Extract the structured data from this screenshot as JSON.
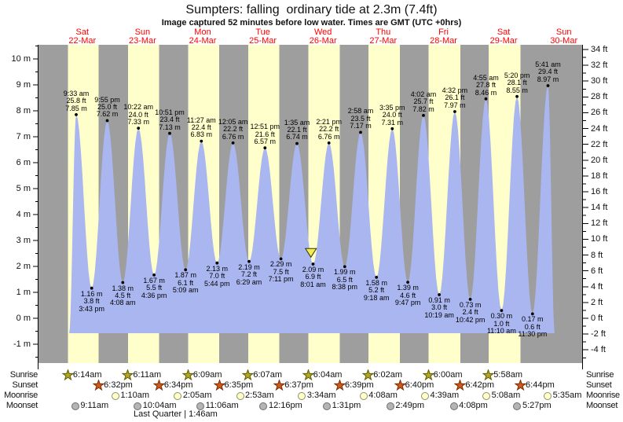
{
  "title": "Sumpters: falling  ordinary tide at 2.3m (7.4ft)",
  "subtitle": "Image captured 52 minutes before low water. Times are GMT (UTC +0hrs)",
  "days": [
    {
      "name": "Sat",
      "date": "22-Mar"
    },
    {
      "name": "Sun",
      "date": "23-Mar"
    },
    {
      "name": "Mon",
      "date": "24-Mar"
    },
    {
      "name": "Tue",
      "date": "25-Mar"
    },
    {
      "name": "Wed",
      "date": "26-Mar"
    },
    {
      "name": "Thu",
      "date": "27-Mar"
    },
    {
      "name": "Fri",
      "date": "28-Mar"
    },
    {
      "name": "Sat",
      "date": "29-Mar"
    },
    {
      "name": "Sun",
      "date": "30-Mar"
    }
  ],
  "axes": {
    "left": {
      "unit": "m",
      "ticks": [
        10,
        9,
        8,
        7,
        6,
        5,
        4,
        3,
        2,
        1,
        0,
        -1
      ]
    },
    "right": {
      "unit": "ft",
      "ticks": [
        34,
        32,
        30,
        28,
        26,
        24,
        22,
        20,
        18,
        16,
        14,
        12,
        10,
        8,
        6,
        4,
        2,
        0,
        -2,
        -4
      ]
    }
  },
  "chart_data": {
    "type": "area",
    "title": "Sumpters: falling  ordinary tide at 2.3m (7.4ft)",
    "x_axis": "9 days, Sat 22-Mar through Sun 30-Mar, day bands = daylight (yellow) / night (grey)",
    "ylabel_left": "height (m)",
    "ylabel_right": "height (ft)",
    "ylim_left_m": [
      -1.7,
      10.5
    ],
    "tide_events": [
      {
        "kind": "high",
        "day": 0,
        "time": "9:33 am",
        "ft": "25.8",
        "m": "7.85"
      },
      {
        "kind": "low",
        "day": 0,
        "time": "3:43 pm",
        "ft": "3.8",
        "m": "1.16"
      },
      {
        "kind": "high",
        "day": 0,
        "time": "9:55 pm",
        "ft": "25.0",
        "m": "7.62"
      },
      {
        "kind": "low",
        "day": 1,
        "time": "4:08 am",
        "ft": "4.5",
        "m": "1.38"
      },
      {
        "kind": "high",
        "day": 1,
        "time": "10:22 am",
        "ft": "24.0",
        "m": "7.33"
      },
      {
        "kind": "low",
        "day": 1,
        "time": "4:36 pm",
        "ft": "5.5",
        "m": "1.67"
      },
      {
        "kind": "high",
        "day": 1,
        "time": "10:51 pm",
        "ft": "23.4",
        "m": "7.13"
      },
      {
        "kind": "low",
        "day": 2,
        "time": "5:09 am",
        "ft": "6.1",
        "m": "1.87"
      },
      {
        "kind": "high",
        "day": 2,
        "time": "11:27 am",
        "ft": "22.4",
        "m": "6.83"
      },
      {
        "kind": "low",
        "day": 2,
        "time": "5:44 pm",
        "ft": "7.0",
        "m": "2.13"
      },
      {
        "kind": "high",
        "day": 3,
        "time": "12:05 am",
        "ft": "22.2",
        "m": "6.76"
      },
      {
        "kind": "low",
        "day": 3,
        "time": "6:29 am",
        "ft": "7.2",
        "m": "2.19"
      },
      {
        "kind": "high",
        "day": 3,
        "time": "12:51 pm",
        "ft": "21.6",
        "m": "6.57"
      },
      {
        "kind": "low",
        "day": 3,
        "time": "7:11 pm",
        "ft": "7.5",
        "m": "2.29"
      },
      {
        "kind": "high",
        "day": 4,
        "time": "1:35 am",
        "ft": "22.1",
        "m": "6.74"
      },
      {
        "kind": "low",
        "day": 4,
        "time": "8:01 am",
        "ft": "6.9",
        "m": "2.09"
      },
      {
        "kind": "high",
        "day": 4,
        "time": "2:21 pm",
        "ft": "22.2",
        "m": "6.76"
      },
      {
        "kind": "low",
        "day": 4,
        "time": "8:38 pm",
        "ft": "6.5",
        "m": "1.99"
      },
      {
        "kind": "high",
        "day": 5,
        "time": "2:58 am",
        "ft": "23.5",
        "m": "7.17"
      },
      {
        "kind": "low",
        "day": 5,
        "time": "9:18 am",
        "ft": "5.2",
        "m": "1.58"
      },
      {
        "kind": "high",
        "day": 5,
        "time": "3:35 pm",
        "ft": "24.0",
        "m": "7.31"
      },
      {
        "kind": "low",
        "day": 5,
        "time": "9:47 pm",
        "ft": "4.6",
        "m": "1.39"
      },
      {
        "kind": "high",
        "day": 6,
        "time": "4:02 am",
        "ft": "25.7",
        "m": "7.82"
      },
      {
        "kind": "low",
        "day": 6,
        "time": "10:19 am",
        "ft": "3.0",
        "m": "0.91"
      },
      {
        "kind": "high",
        "day": 6,
        "time": "4:32 pm",
        "ft": "26.1",
        "m": "7.97"
      },
      {
        "kind": "low",
        "day": 6,
        "time": "10:42 pm",
        "ft": "2.4",
        "m": "0.73"
      },
      {
        "kind": "high",
        "day": 7,
        "time": "4:55 am",
        "ft": "27.8",
        "m": "8.46"
      },
      {
        "kind": "low",
        "day": 7,
        "time": "11:10 am",
        "ft": "1.0",
        "m": "0.30"
      },
      {
        "kind": "high",
        "day": 7,
        "time": "5:20 pm",
        "ft": "28.1",
        "m": "8.55"
      },
      {
        "kind": "low",
        "day": 7,
        "time": "11:30 pm",
        "ft": "0.6",
        "m": "0.17"
      },
      {
        "kind": "high",
        "day": 8,
        "time": "5:41 am",
        "ft": "29.4",
        "m": "8.97"
      }
    ],
    "now_marker": {
      "day": 4,
      "time": "7:09 am"
    }
  },
  "astro": {
    "rows": [
      {
        "label": "Sunrise",
        "icon": "sunrise-star-icon",
        "events": [
          {
            "day": 0,
            "time": "6:14am"
          },
          {
            "day": 1,
            "time": "6:11am"
          },
          {
            "day": 2,
            "time": "6:09am"
          },
          {
            "day": 3,
            "time": "6:07am"
          },
          {
            "day": 4,
            "time": "6:04am"
          },
          {
            "day": 5,
            "time": "6:02am"
          },
          {
            "day": 6,
            "time": "6:00am"
          },
          {
            "day": 7,
            "time": "5:58am"
          }
        ]
      },
      {
        "label": "Sunset",
        "icon": "sunset-star-icon",
        "events": [
          {
            "day": 0,
            "time": "6:32pm"
          },
          {
            "day": 1,
            "time": "6:34pm"
          },
          {
            "day": 2,
            "time": "6:35pm"
          },
          {
            "day": 3,
            "time": "6:37pm"
          },
          {
            "day": 4,
            "time": "6:39pm"
          },
          {
            "day": 5,
            "time": "6:40pm"
          },
          {
            "day": 6,
            "time": "6:42pm"
          },
          {
            "day": 7,
            "time": "6:44pm"
          }
        ]
      },
      {
        "label": "Moonrise",
        "icon": "moonrise-circle-icon",
        "events": [
          {
            "day": 1,
            "time": "1:10am"
          },
          {
            "day": 2,
            "time": "2:05am"
          },
          {
            "day": 3,
            "time": "2:53am"
          },
          {
            "day": 4,
            "time": "3:34am"
          },
          {
            "day": 5,
            "time": "4:08am"
          },
          {
            "day": 6,
            "time": "4:39am"
          },
          {
            "day": 7,
            "time": "5:08am"
          },
          {
            "day": 8,
            "time": "5:35am"
          }
        ]
      },
      {
        "label": "Moonset",
        "icon": "moonset-circle-icon",
        "events": [
          {
            "day": 0,
            "time": "9:11am"
          },
          {
            "day": 1,
            "time": "10:04am"
          },
          {
            "day": 2,
            "time": "11:06am"
          },
          {
            "day": 3,
            "time": "12:16pm"
          },
          {
            "day": 4,
            "time": "1:31pm"
          },
          {
            "day": 5,
            "time": "2:49pm"
          },
          {
            "day": 6,
            "time": "4:08pm"
          },
          {
            "day": 7,
            "time": "5:27pm"
          }
        ]
      }
    ],
    "moon_phase": "Last Quarter | 1:46am"
  },
  "colors": {
    "night_band": "#9e9e9e",
    "day_band": "#ffffcc",
    "tide_fill": "#aab6f0",
    "date_text": "#ff0000",
    "axis": "#000000",
    "sunrise_star": "#b3a824",
    "sunrise_star_edge": "#5f5a00",
    "sunset_star": "#cf5a1c",
    "sunset_star_edge": "#7a2d00",
    "moonrise_fill": "#ffffcc",
    "moonrise_edge": "#8f8f66",
    "moonset_fill": "#b4b4b4",
    "moonset_edge": "#6e6e6e",
    "now_marker": "#f2ec52",
    "now_marker_edge": "#333300"
  }
}
